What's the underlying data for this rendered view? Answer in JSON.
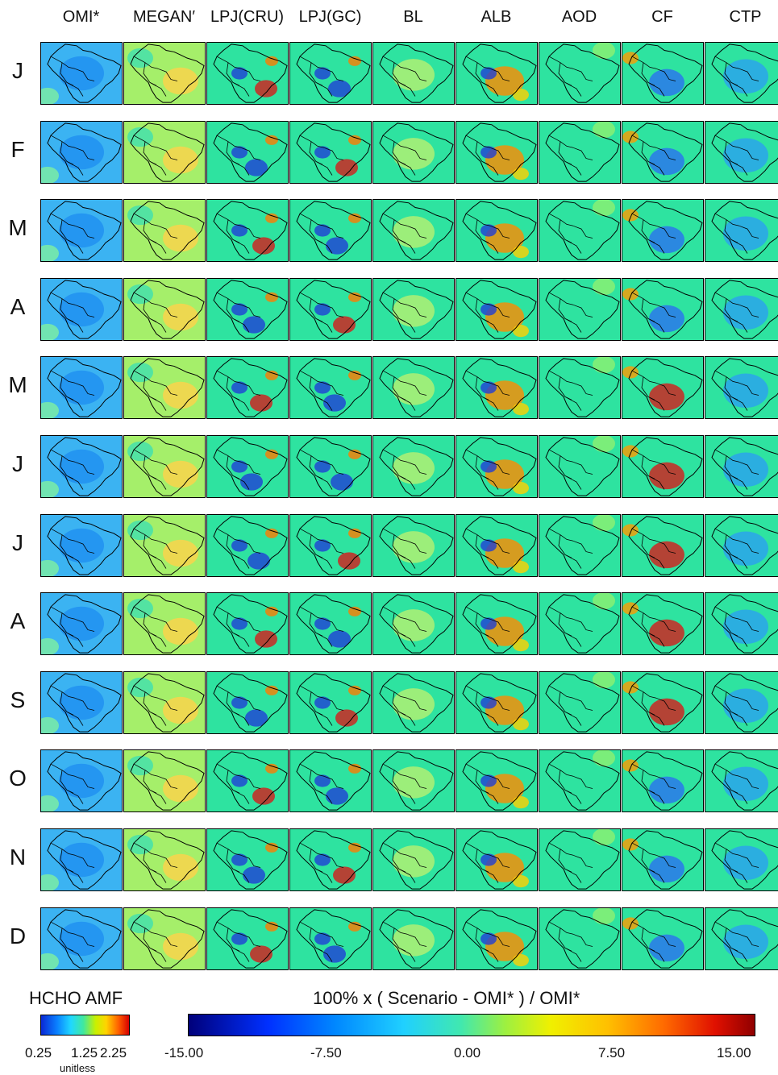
{
  "columns": [
    "OMI*",
    "MEGAN′",
    "LPJ(CRU)",
    "LPJ(GC)",
    "BL",
    "ALB",
    "AOD",
    "CF",
    "CTP"
  ],
  "rows": [
    "J",
    "F",
    "M",
    "A",
    "M",
    "J",
    "J",
    "A",
    "S",
    "O",
    "N",
    "D"
  ],
  "panel_colormap": {
    "col0_base": "#3bb3f2",
    "col1_base": "#a5ef6a",
    "diff_base": "#2ee3a0",
    "hot": "#d61a1a",
    "cold": "#1f3fd6"
  },
  "colorbar_amf": {
    "title": "HCHO AMF",
    "ticks": [
      "0.25",
      "1.25",
      "2.25"
    ],
    "unit": "unitless",
    "range": [
      0.25,
      2.25
    ]
  },
  "colorbar_diff": {
    "title": "100% x ( Scenario - OMI* ) / OMI*",
    "ticks": [
      "-15.00",
      "-7.50",
      "0.00",
      "7.50",
      "15.00"
    ],
    "range": [
      -15,
      15
    ]
  },
  "colors": {
    "jet": [
      "#00008b",
      "#0032ff",
      "#00c8ff",
      "#40e0a0",
      "#c8f000",
      "#ffcc00",
      "#ff5a00",
      "#b40000"
    ]
  }
}
